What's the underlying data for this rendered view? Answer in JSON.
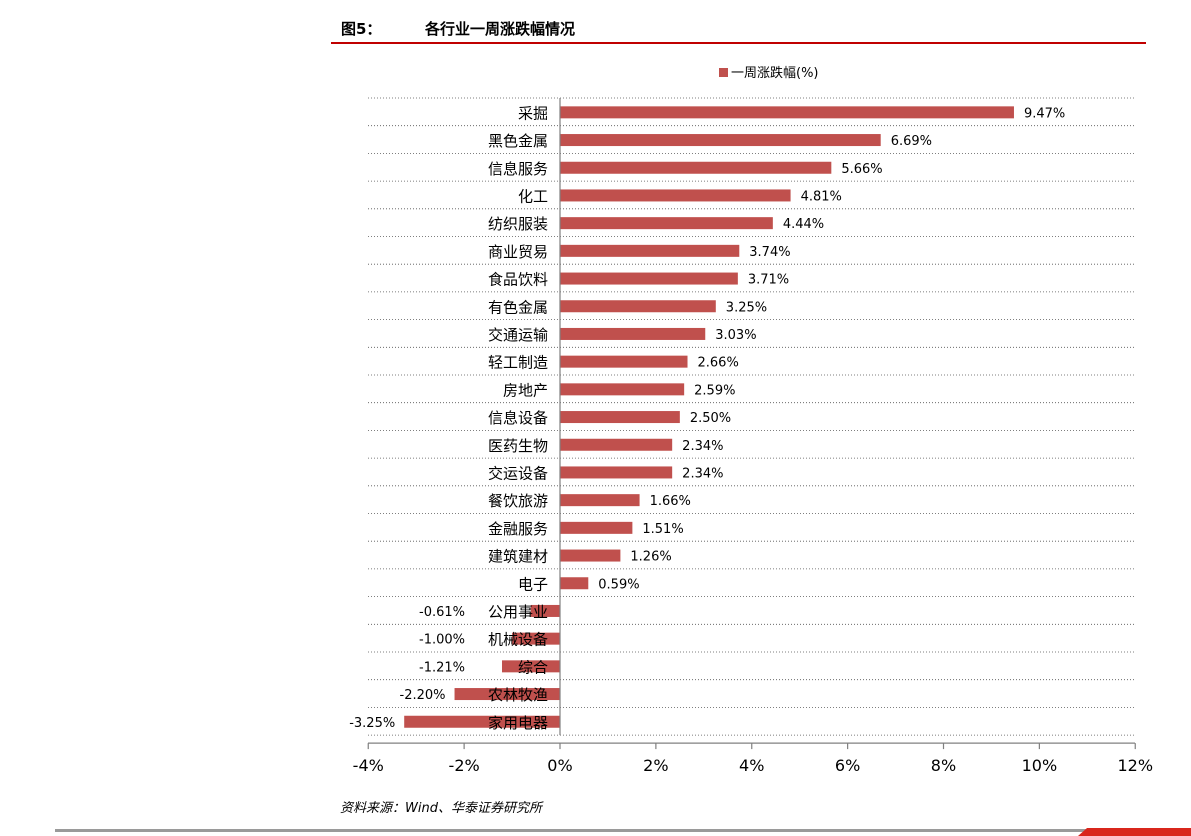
{
  "header": {
    "figure_number": "图5：",
    "figure_title": "各行业一周涨跌幅情况"
  },
  "source": "资料来源：Wind、华泰证券研究所",
  "colors": {
    "bar": "#c0504d",
    "header_rule": "#c00000"
  },
  "chart_data": {
    "type": "bar",
    "orientation": "horizontal",
    "title": "",
    "xlabel": "",
    "ylabel": "",
    "xlim": [
      -4,
      12
    ],
    "xticks": [
      "-4%",
      "-2%",
      "0%",
      "2%",
      "4%",
      "6%",
      "8%",
      "10%",
      "12%"
    ],
    "grid": "horizontal dotted",
    "legend": "top-center",
    "series": [
      {
        "name": "一周涨跌幅(%)",
        "color": "#c0504d",
        "categories": [
          "采掘",
          "黑色金属",
          "信息服务",
          "化工",
          "纺织服装",
          "商业贸易",
          "食品饮料",
          "有色金属",
          "交通运输",
          "轻工制造",
          "房地产",
          "信息设备",
          "医药生物",
          "交运设备",
          "餐饮旅游",
          "金融服务",
          "建筑建材",
          "电子",
          "公用事业",
          "机械设备",
          "综合",
          "农林牧渔",
          "家用电器"
        ],
        "values": [
          9.47,
          6.69,
          5.66,
          4.81,
          4.44,
          3.74,
          3.71,
          3.25,
          3.03,
          2.66,
          2.59,
          2.5,
          2.34,
          2.34,
          1.66,
          1.51,
          1.26,
          0.59,
          -0.61,
          -1.0,
          -1.21,
          -2.2,
          -3.25
        ],
        "labels": [
          "9.47%",
          "6.69%",
          "5.66%",
          "4.81%",
          "4.44%",
          "3.74%",
          "3.71%",
          "3.25%",
          "3.03%",
          "2.66%",
          "2.59%",
          "2.50%",
          "2.34%",
          "2.34%",
          "1.66%",
          "1.51%",
          "1.26%",
          "0.59%",
          "-0.61%",
          "-1.00%",
          "-1.21%",
          "-2.20%",
          "-3.25%"
        ]
      }
    ]
  }
}
